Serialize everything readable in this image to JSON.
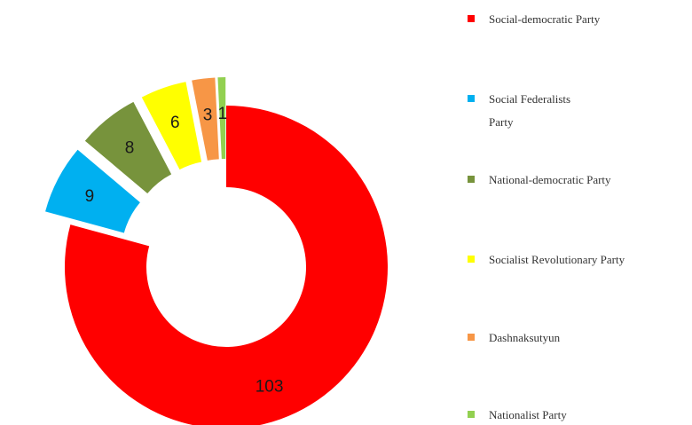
{
  "chart_data": {
    "type": "pie",
    "variant": "donut",
    "exploded_slices": true,
    "legend_position": "right",
    "series": [
      {
        "name": "Social-democratic Party",
        "value": 103,
        "color": "#ff0000"
      },
      {
        "name": "Social Federalists Party",
        "value": 9,
        "color": "#00b0f0"
      },
      {
        "name": "National-democratic Party",
        "value": 8,
        "color": "#77933c"
      },
      {
        "name": "Socialist Revolutionary Party",
        "value": 6,
        "color": "#ffff00"
      },
      {
        "name": "Dashnaksutyun",
        "value": 3,
        "color": "#f79646"
      },
      {
        "name": "Nationalist Party",
        "value": 1,
        "color": "#92d050"
      }
    ]
  }
}
